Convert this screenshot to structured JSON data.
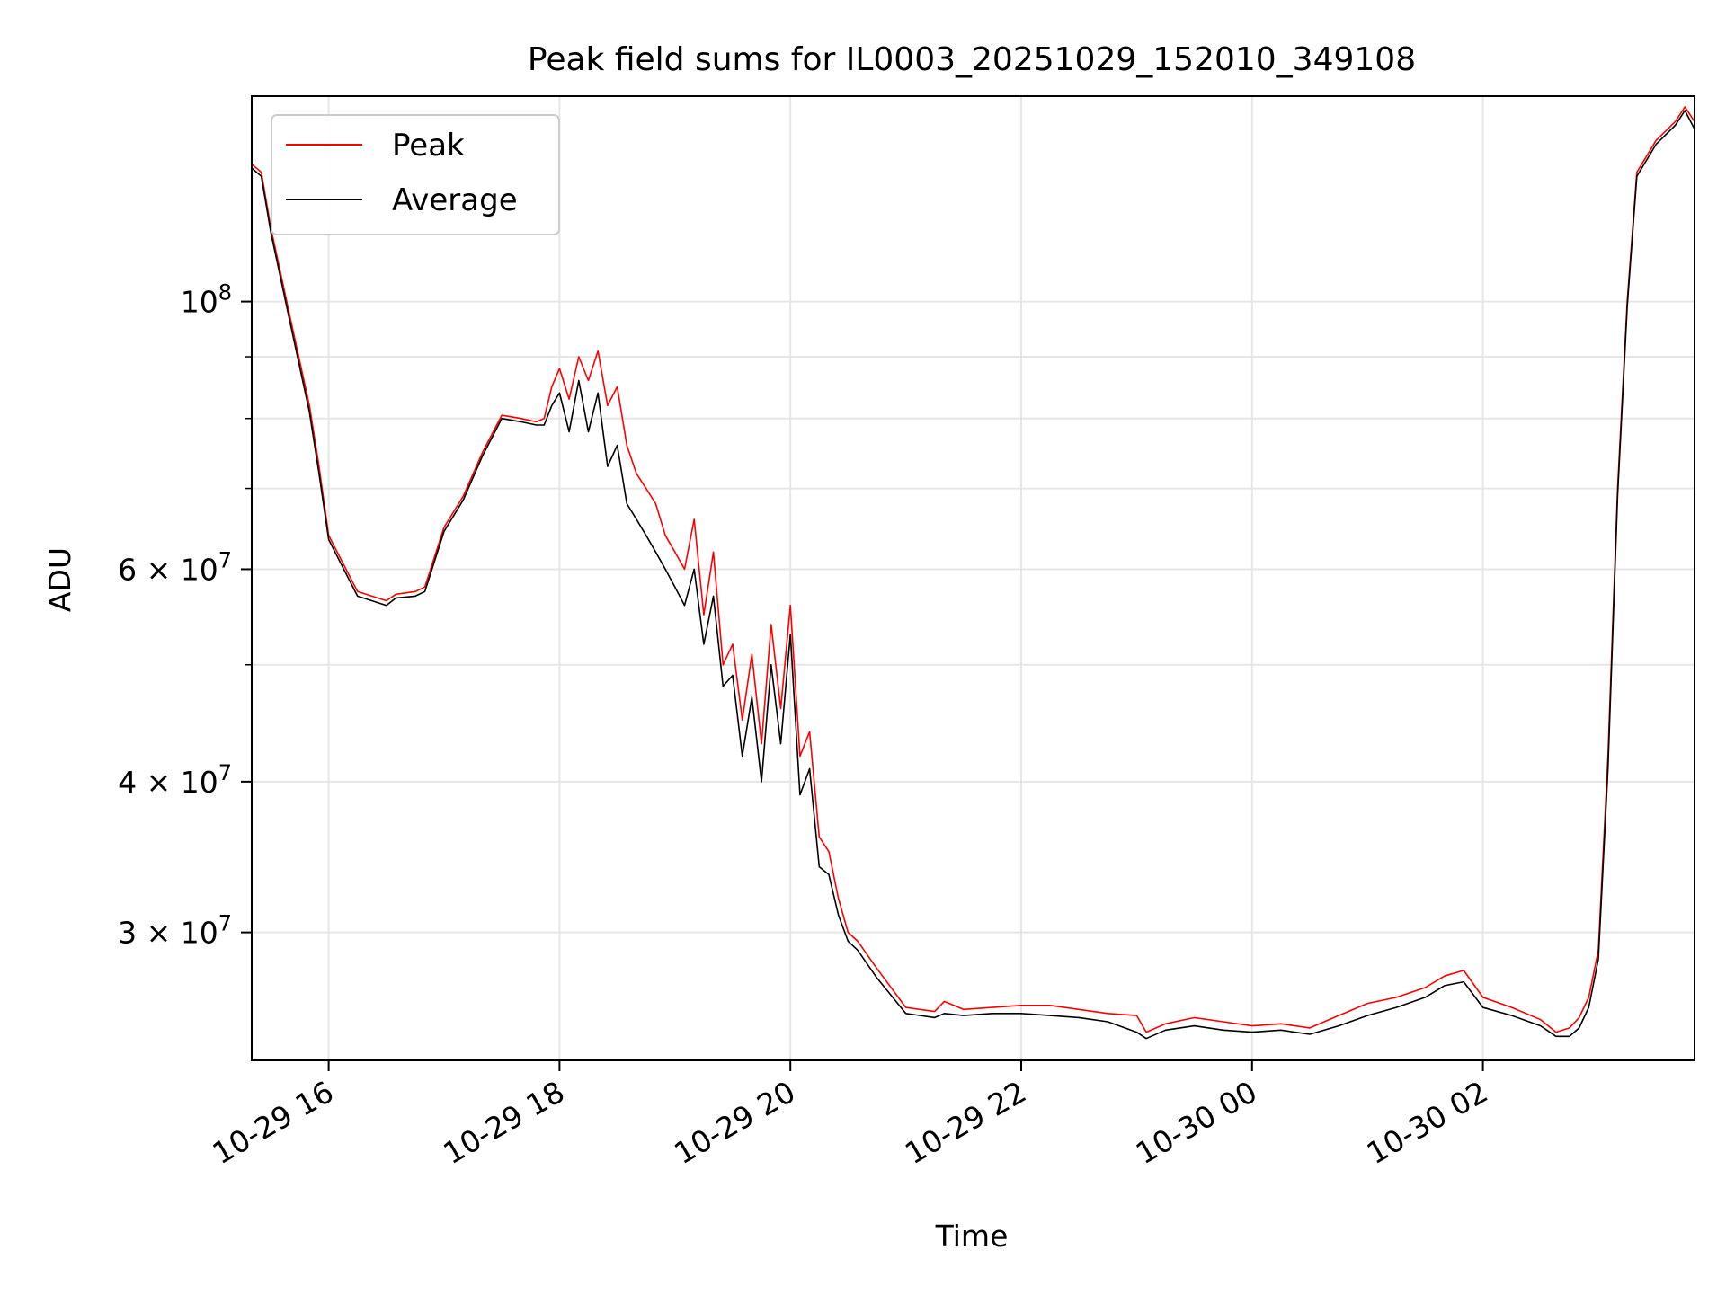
{
  "chart_data": {
    "type": "line",
    "title": "Peak field sums for IL0003_20251029_152010_349108",
    "xlabel": "Time",
    "ylabel": "ADU",
    "x_type": "time",
    "xlim": [
      "2025-10-29 15:20",
      "2025-10-30 03:50"
    ],
    "ylim": [
      23500000,
      148000000
    ],
    "yscale": "log",
    "grid": true,
    "legend_position": "upper left",
    "x_ticks": [
      {
        "value": "2025-10-29 16:00",
        "label": "10-29 16"
      },
      {
        "value": "2025-10-29 18:00",
        "label": "10-29 18"
      },
      {
        "value": "2025-10-29 20:00",
        "label": "10-29 20"
      },
      {
        "value": "2025-10-29 22:00",
        "label": "10-29 22"
      },
      {
        "value": "2025-10-30 00:00",
        "label": "10-30 00"
      },
      {
        "value": "2025-10-30 02:00",
        "label": "10-30 02"
      }
    ],
    "y_ticks": [
      {
        "value": 30000000,
        "mantissa": "3",
        "label": "3 × 10^7"
      },
      {
        "value": 40000000,
        "mantissa": "4",
        "label": "4 × 10^7"
      },
      {
        "value": 60000000,
        "mantissa": "6",
        "label": "6 × 10^7"
      },
      {
        "value": 100000000,
        "mantissa": "",
        "label": "10^8"
      }
    ],
    "y_tick_base": "10",
    "y_minor_ticks": [
      50000000,
      70000000,
      80000000,
      90000000
    ],
    "series": [
      {
        "name": "Peak",
        "color": "#ff0000",
        "x": [
          "2025-10-29 15:20",
          "2025-10-29 15:25",
          "2025-10-29 15:30",
          "2025-10-29 15:40",
          "2025-10-29 15:50",
          "2025-10-29 15:55",
          "2025-10-29 16:00",
          "2025-10-29 16:15",
          "2025-10-29 16:30",
          "2025-10-29 16:35",
          "2025-10-29 16:45",
          "2025-10-29 16:50",
          "2025-10-29 17:00",
          "2025-10-29 17:10",
          "2025-10-29 17:20",
          "2025-10-29 17:30",
          "2025-10-29 17:40",
          "2025-10-29 17:48",
          "2025-10-29 17:52",
          "2025-10-29 17:56",
          "2025-10-29 18:00",
          "2025-10-29 18:05",
          "2025-10-29 18:10",
          "2025-10-29 18:15",
          "2025-10-29 18:20",
          "2025-10-29 18:25",
          "2025-10-29 18:30",
          "2025-10-29 18:35",
          "2025-10-29 18:40",
          "2025-10-29 18:45",
          "2025-10-29 18:50",
          "2025-10-29 18:55",
          "2025-10-29 19:00",
          "2025-10-29 19:05",
          "2025-10-29 19:10",
          "2025-10-29 19:15",
          "2025-10-29 19:20",
          "2025-10-29 19:25",
          "2025-10-29 19:30",
          "2025-10-29 19:35",
          "2025-10-29 19:40",
          "2025-10-29 19:45",
          "2025-10-29 19:50",
          "2025-10-29 19:55",
          "2025-10-29 20:00",
          "2025-10-29 20:05",
          "2025-10-29 20:10",
          "2025-10-29 20:15",
          "2025-10-29 20:20",
          "2025-10-29 20:25",
          "2025-10-29 20:30",
          "2025-10-29 20:35",
          "2025-10-29 20:45",
          "2025-10-29 21:00",
          "2025-10-29 21:15",
          "2025-10-29 21:20",
          "2025-10-29 21:30",
          "2025-10-29 21:45",
          "2025-10-29 22:00",
          "2025-10-29 22:15",
          "2025-10-29 22:30",
          "2025-10-29 22:45",
          "2025-10-29 23:00",
          "2025-10-29 23:05",
          "2025-10-29 23:15",
          "2025-10-29 23:30",
          "2025-10-29 23:45",
          "2025-10-30 00:00",
          "2025-10-30 00:15",
          "2025-10-30 00:30",
          "2025-10-30 00:45",
          "2025-10-30 01:00",
          "2025-10-30 01:15",
          "2025-10-30 01:30",
          "2025-10-30 01:40",
          "2025-10-30 01:50",
          "2025-10-30 02:00",
          "2025-10-30 02:15",
          "2025-10-30 02:30",
          "2025-10-30 02:38",
          "2025-10-30 02:45",
          "2025-10-30 02:50",
          "2025-10-30 02:55",
          "2025-10-30 03:00",
          "2025-10-30 03:05",
          "2025-10-30 03:10",
          "2025-10-30 03:15",
          "2025-10-30 03:20",
          "2025-10-30 03:30",
          "2025-10-30 03:40",
          "2025-10-30 03:45",
          "2025-10-30 03:50"
        ],
        "y": [
          130000000,
          128000000,
          115000000,
          97000000,
          82000000,
          73000000,
          64000000,
          57500000,
          56500000,
          57200000,
          57500000,
          58000000,
          65000000,
          69000000,
          75000000,
          80500000,
          80000000,
          79500000,
          80000000,
          85000000,
          88000000,
          83000000,
          90000000,
          86000000,
          91000000,
          82000000,
          85000000,
          76000000,
          72000000,
          70000000,
          68000000,
          64000000,
          62000000,
          60000000,
          66000000,
          55000000,
          62000000,
          50000000,
          52000000,
          45000000,
          51000000,
          43000000,
          54000000,
          46000000,
          56000000,
          42000000,
          44000000,
          36000000,
          35000000,
          32000000,
          30000000,
          29500000,
          28000000,
          26000000,
          25800000,
          26300000,
          25900000,
          26000000,
          26100000,
          26100000,
          25900000,
          25700000,
          25600000,
          24800000,
          25200000,
          25500000,
          25300000,
          25100000,
          25200000,
          25000000,
          25600000,
          26200000,
          26500000,
          27000000,
          27600000,
          27900000,
          26500000,
          26000000,
          25400000,
          24800000,
          25000000,
          25500000,
          26500000,
          29000000,
          42000000,
          70000000,
          100000000,
          128000000,
          136000000,
          141000000,
          145000000,
          141000000
        ]
      },
      {
        "name": "Average",
        "color": "#000000",
        "x": [
          "2025-10-29 15:20",
          "2025-10-29 15:25",
          "2025-10-29 15:30",
          "2025-10-29 15:40",
          "2025-10-29 15:50",
          "2025-10-29 15:55",
          "2025-10-29 16:00",
          "2025-10-29 16:15",
          "2025-10-29 16:30",
          "2025-10-29 16:35",
          "2025-10-29 16:45",
          "2025-10-29 16:50",
          "2025-10-29 17:00",
          "2025-10-29 17:10",
          "2025-10-29 17:20",
          "2025-10-29 17:30",
          "2025-10-29 17:40",
          "2025-10-29 17:48",
          "2025-10-29 17:52",
          "2025-10-29 17:56",
          "2025-10-29 18:00",
          "2025-10-29 18:05",
          "2025-10-29 18:10",
          "2025-10-29 18:15",
          "2025-10-29 18:20",
          "2025-10-29 18:25",
          "2025-10-29 18:30",
          "2025-10-29 18:35",
          "2025-10-29 18:40",
          "2025-10-29 18:45",
          "2025-10-29 18:50",
          "2025-10-29 18:55",
          "2025-10-29 19:00",
          "2025-10-29 19:05",
          "2025-10-29 19:10",
          "2025-10-29 19:15",
          "2025-10-29 19:20",
          "2025-10-29 19:25",
          "2025-10-29 19:30",
          "2025-10-29 19:35",
          "2025-10-29 19:40",
          "2025-10-29 19:45",
          "2025-10-29 19:50",
          "2025-10-29 19:55",
          "2025-10-29 20:00",
          "2025-10-29 20:05",
          "2025-10-29 20:10",
          "2025-10-29 20:15",
          "2025-10-29 20:20",
          "2025-10-29 20:25",
          "2025-10-29 20:30",
          "2025-10-29 20:35",
          "2025-10-29 20:45",
          "2025-10-29 21:00",
          "2025-10-29 21:15",
          "2025-10-29 21:20",
          "2025-10-29 21:30",
          "2025-10-29 21:45",
          "2025-10-29 22:00",
          "2025-10-29 22:15",
          "2025-10-29 22:30",
          "2025-10-29 22:45",
          "2025-10-29 23:00",
          "2025-10-29 23:05",
          "2025-10-29 23:15",
          "2025-10-29 23:30",
          "2025-10-29 23:45",
          "2025-10-30 00:00",
          "2025-10-30 00:15",
          "2025-10-30 00:30",
          "2025-10-30 00:45",
          "2025-10-30 01:00",
          "2025-10-30 01:15",
          "2025-10-30 01:30",
          "2025-10-30 01:40",
          "2025-10-30 01:50",
          "2025-10-30 02:00",
          "2025-10-30 02:15",
          "2025-10-30 02:30",
          "2025-10-30 02:38",
          "2025-10-30 02:45",
          "2025-10-30 02:50",
          "2025-10-30 02:55",
          "2025-10-30 03:00",
          "2025-10-30 03:05",
          "2025-10-30 03:10",
          "2025-10-30 03:15",
          "2025-10-30 03:20",
          "2025-10-30 03:30",
          "2025-10-30 03:40",
          "2025-10-30 03:45",
          "2025-10-30 03:50"
        ],
        "y": [
          129000000,
          127000000,
          114000000,
          96000000,
          81000000,
          72000000,
          63500000,
          57000000,
          56000000,
          56800000,
          57000000,
          57500000,
          64500000,
          68500000,
          74500000,
          80000000,
          79500000,
          79000000,
          79000000,
          82000000,
          84000000,
          78000000,
          86000000,
          78000000,
          84000000,
          73000000,
          76000000,
          68000000,
          66000000,
          64000000,
          62000000,
          60000000,
          58000000,
          56000000,
          60000000,
          52000000,
          57000000,
          48000000,
          49000000,
          42000000,
          47000000,
          40000000,
          50000000,
          43000000,
          53000000,
          39000000,
          41000000,
          34000000,
          33500000,
          31000000,
          29500000,
          29000000,
          27500000,
          25700000,
          25500000,
          25700000,
          25600000,
          25700000,
          25700000,
          25600000,
          25500000,
          25300000,
          24800000,
          24500000,
          24900000,
          25100000,
          24900000,
          24800000,
          24900000,
          24700000,
          25100000,
          25600000,
          26000000,
          26500000,
          27100000,
          27300000,
          26000000,
          25600000,
          25100000,
          24600000,
          24600000,
          25000000,
          26000000,
          28500000,
          41000000,
          69000000,
          99000000,
          127000000,
          135000000,
          140000000,
          144000000,
          139000000
        ]
      }
    ]
  }
}
